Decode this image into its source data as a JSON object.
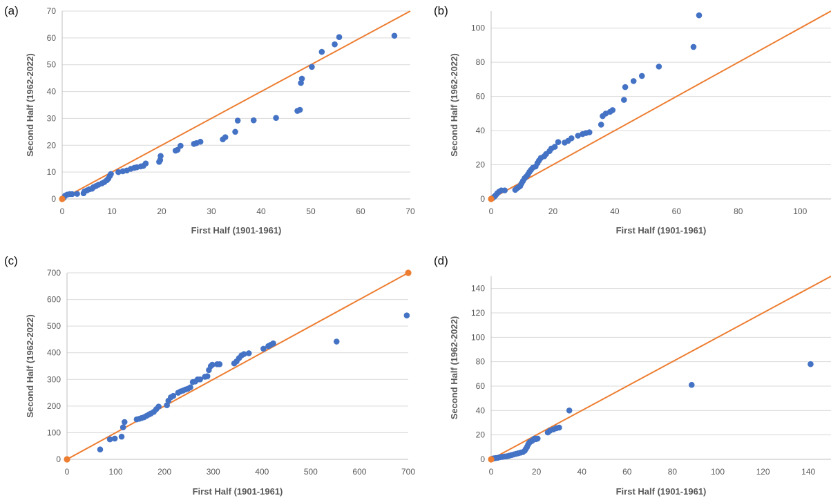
{
  "colors": {
    "series": "#4472c4",
    "reference": "#ed7d31",
    "grid": "#d9d9d9",
    "text": "#595959"
  },
  "chart_data": [
    {
      "panel": "(a)",
      "type": "scatter",
      "xlabel": "First Half (1901-1961)",
      "ylabel": "Second Half (1962-2022)",
      "xlim": [
        0,
        70
      ],
      "ylim": [
        0,
        70
      ],
      "xticks": [
        0,
        10,
        20,
        30,
        40,
        50,
        60,
        70
      ],
      "yticks": [
        0,
        10,
        20,
        30,
        40,
        50,
        60,
        70
      ],
      "grid": "horizontal",
      "reference_line": [
        [
          0,
          0
        ],
        [
          70,
          70
        ]
      ],
      "reference_points": [
        [
          0,
          0
        ]
      ],
      "points": [
        [
          0.3,
          0.4
        ],
        [
          0.6,
          1.2
        ],
        [
          1,
          1.6
        ],
        [
          1.5,
          1.8
        ],
        [
          2,
          1.8
        ],
        [
          3,
          1.9
        ],
        [
          4.3,
          2.1
        ],
        [
          4.5,
          2.8
        ],
        [
          5,
          3.2
        ],
        [
          5.5,
          3.6
        ],
        [
          6,
          3.8
        ],
        [
          6.3,
          4.4
        ],
        [
          6.8,
          4.8
        ],
        [
          7.3,
          5.3
        ],
        [
          8,
          5.8
        ],
        [
          8.5,
          6.3
        ],
        [
          9,
          7
        ],
        [
          9.3,
          7.6
        ],
        [
          9.6,
          8.6
        ],
        [
          9.8,
          9.3
        ],
        [
          11.3,
          10
        ],
        [
          12.2,
          10.3
        ],
        [
          13,
          10.6
        ],
        [
          13.8,
          11.2
        ],
        [
          14.5,
          11.6
        ],
        [
          15,
          11.8
        ],
        [
          15.8,
          12.1
        ],
        [
          16.3,
          12.3
        ],
        [
          16.8,
          13.2
        ],
        [
          19.5,
          13.8
        ],
        [
          19.7,
          14.5
        ],
        [
          19.8,
          16
        ],
        [
          22.8,
          18
        ],
        [
          23.2,
          18.3
        ],
        [
          23.8,
          19.8
        ],
        [
          26.5,
          20.5
        ],
        [
          27,
          20.8
        ],
        [
          27.8,
          21.3
        ],
        [
          32.3,
          22.2
        ],
        [
          32.8,
          23
        ],
        [
          34.8,
          25
        ],
        [
          35.3,
          29.2
        ],
        [
          38.5,
          29.3
        ],
        [
          43,
          30.2
        ],
        [
          47.3,
          32.8
        ],
        [
          47.8,
          33.2
        ],
        [
          48,
          43.2
        ],
        [
          48.2,
          44.8
        ],
        [
          50.2,
          49.2
        ],
        [
          52.2,
          54.8
        ],
        [
          54.8,
          57.6
        ],
        [
          55.7,
          60.3
        ],
        [
          66.8,
          60.8
        ]
      ]
    },
    {
      "panel": "(b)",
      "type": "scatter",
      "xlabel": "First Half (1901-1961)",
      "ylabel": "Second Half (1962-2022)",
      "xlim": [
        0,
        110
      ],
      "ylim": [
        0,
        110
      ],
      "xticks": [
        0,
        20,
        40,
        60,
        80,
        100
      ],
      "yticks": [
        0,
        20,
        40,
        60,
        80,
        100
      ],
      "grid": "horizontal",
      "reference_line": [
        [
          0,
          0
        ],
        [
          110,
          110
        ]
      ],
      "reference_points": [
        [
          0,
          0
        ]
      ],
      "points": [
        [
          0.5,
          0.5
        ],
        [
          1,
          1.3
        ],
        [
          1.5,
          2.2
        ],
        [
          2,
          3.3
        ],
        [
          2.6,
          4.3
        ],
        [
          3.3,
          5
        ],
        [
          4.4,
          5
        ],
        [
          7.8,
          5.3
        ],
        [
          8.2,
          6
        ],
        [
          8.8,
          6.8
        ],
        [
          9.4,
          7.5
        ],
        [
          9.8,
          9
        ],
        [
          10.3,
          10.5
        ],
        [
          10.8,
          12
        ],
        [
          11.3,
          13
        ],
        [
          11.9,
          14.3
        ],
        [
          12.4,
          15.8
        ],
        [
          12.9,
          17
        ],
        [
          13.5,
          18.3
        ],
        [
          14.4,
          19
        ],
        [
          15,
          21
        ],
        [
          15.5,
          22.5
        ],
        [
          16.1,
          24
        ],
        [
          17.2,
          25
        ],
        [
          17.8,
          26.3
        ],
        [
          18.9,
          28
        ],
        [
          19.5,
          29.5
        ],
        [
          20.6,
          30.5
        ],
        [
          21.7,
          33.3
        ],
        [
          23.8,
          33
        ],
        [
          24.9,
          34
        ],
        [
          26,
          35.5
        ],
        [
          28.1,
          37
        ],
        [
          29.6,
          38
        ],
        [
          30.7,
          38.6
        ],
        [
          31.8,
          39
        ],
        [
          35.6,
          43.5
        ],
        [
          36.1,
          48.5
        ],
        [
          37.1,
          50
        ],
        [
          38.5,
          51
        ],
        [
          39.3,
          52
        ],
        [
          43,
          58
        ],
        [
          43.4,
          65.5
        ],
        [
          46.1,
          69
        ],
        [
          48.8,
          72
        ],
        [
          54.3,
          77.5
        ],
        [
          65.5,
          89
        ],
        [
          67.3,
          107.5
        ]
      ]
    },
    {
      "panel": "(c)",
      "type": "scatter",
      "xlabel": "First Half (1901-1961)",
      "ylabel": "Second Half (1962-2022)",
      "xlim": [
        0,
        700
      ],
      "ylim": [
        0,
        700
      ],
      "xticks": [
        0,
        100,
        200,
        300,
        400,
        500,
        600,
        700
      ],
      "yticks": [
        0,
        100,
        200,
        300,
        400,
        500,
        600,
        700
      ],
      "grid": "horizontal",
      "reference_line": [
        [
          0,
          0
        ],
        [
          700,
          700
        ]
      ],
      "reference_points": [
        [
          0,
          0
        ],
        [
          700,
          700
        ]
      ],
      "points": [
        [
          68,
          37
        ],
        [
          88,
          75
        ],
        [
          98,
          78
        ],
        [
          112,
          85
        ],
        [
          115,
          120
        ],
        [
          118,
          140
        ],
        [
          143,
          150
        ],
        [
          148,
          152
        ],
        [
          153,
          155
        ],
        [
          158,
          158
        ],
        [
          163,
          163
        ],
        [
          168,
          168
        ],
        [
          172,
          172
        ],
        [
          178,
          178
        ],
        [
          183,
          188
        ],
        [
          188,
          198
        ],
        [
          205,
          203
        ],
        [
          208,
          220
        ],
        [
          213,
          233
        ],
        [
          218,
          238
        ],
        [
          228,
          250
        ],
        [
          233,
          255
        ],
        [
          238,
          258
        ],
        [
          243,
          262
        ],
        [
          248,
          265
        ],
        [
          253,
          270
        ],
        [
          258,
          290
        ],
        [
          263,
          292
        ],
        [
          268,
          300
        ],
        [
          273,
          300
        ],
        [
          283,
          310
        ],
        [
          288,
          312
        ],
        [
          291,
          335
        ],
        [
          295,
          350
        ],
        [
          298,
          355
        ],
        [
          308,
          357
        ],
        [
          313,
          357
        ],
        [
          343,
          360
        ],
        [
          348,
          368
        ],
        [
          353,
          380
        ],
        [
          358,
          390
        ],
        [
          363,
          395
        ],
        [
          373,
          398
        ],
        [
          403,
          415
        ],
        [
          413,
          425
        ],
        [
          418,
          430
        ],
        [
          423,
          435
        ],
        [
          553,
          442
        ],
        [
          697,
          540
        ]
      ]
    },
    {
      "panel": "(d)",
      "type": "scatter",
      "xlabel": "First Half (1901-1961)",
      "ylabel": "Second Half (1962-2022)",
      "xlim": [
        0,
        150
      ],
      "ylim": [
        0,
        150
      ],
      "xticks": [
        0,
        20,
        40,
        60,
        80,
        100,
        120,
        140
      ],
      "yticks": [
        0,
        20,
        40,
        60,
        80,
        100,
        120,
        140
      ],
      "grid": "horizontal",
      "reference_line": [
        [
          0,
          0
        ],
        [
          150,
          150
        ]
      ],
      "reference_points": [
        [
          0,
          0
        ]
      ],
      "points": [
        [
          0.3,
          0.3
        ],
        [
          0.8,
          0.6
        ],
        [
          1.2,
          0.8
        ],
        [
          2,
          1
        ],
        [
          3,
          1.3
        ],
        [
          4,
          1.8
        ],
        [
          5,
          2
        ],
        [
          6,
          2.3
        ],
        [
          7,
          2.5
        ],
        [
          8,
          3
        ],
        [
          9,
          3.5
        ],
        [
          10,
          4
        ],
        [
          11,
          4.5
        ],
        [
          12,
          5
        ],
        [
          13,
          5.5
        ],
        [
          14,
          6
        ],
        [
          14.8,
          7
        ],
        [
          15.3,
          8.5
        ],
        [
          15.8,
          10
        ],
        [
          16.3,
          12
        ],
        [
          16.8,
          13.5
        ],
        [
          17.3,
          14.5
        ],
        [
          18,
          15
        ],
        [
          18.6,
          16
        ],
        [
          19.2,
          17
        ],
        [
          19.8,
          16.5
        ],
        [
          20.5,
          17
        ],
        [
          25,
          22
        ],
        [
          26,
          23.5
        ],
        [
          27.5,
          24.5
        ],
        [
          28.8,
          25.5
        ],
        [
          30,
          26
        ],
        [
          34.5,
          40
        ],
        [
          88.5,
          61
        ],
        [
          141,
          78
        ]
      ]
    }
  ]
}
